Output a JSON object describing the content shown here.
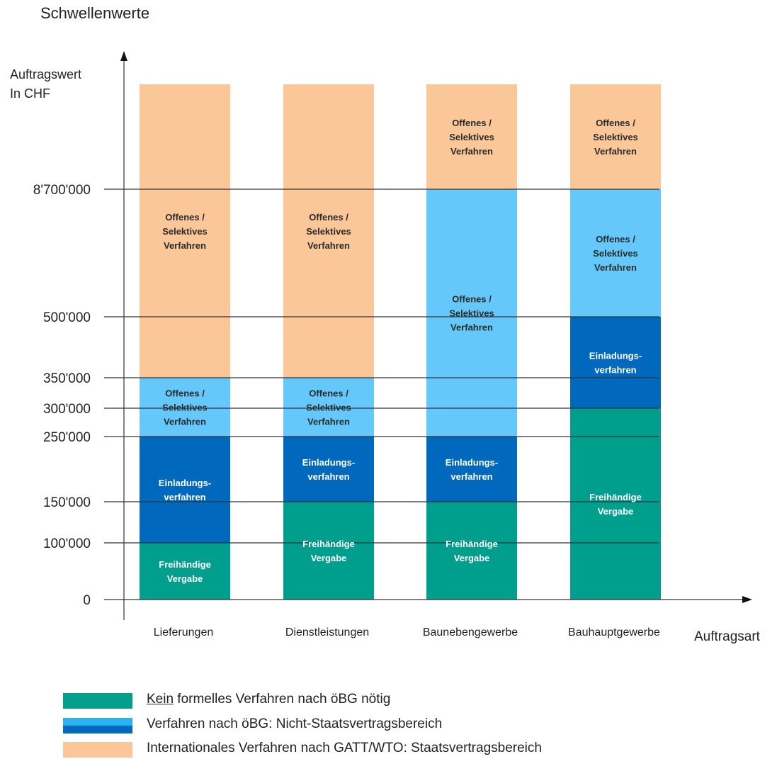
{
  "title": "Schwellenwerte",
  "y_axis_label": [
    "Auftragswert",
    "In CHF"
  ],
  "x_axis_label": "Auftragsart",
  "colors": {
    "green": "#009e8c",
    "dark_blue": "#0069bd",
    "light_blue": "#64c8fb",
    "peach": "#fbc799"
  },
  "chart_data": {
    "type": "bar",
    "stacked": true,
    "categories": [
      "Lieferungen",
      "Dienstleistungen",
      "Baunebengewerbe",
      "Bauhauptgewerbe"
    ],
    "y_ticks": [
      {
        "value": 0,
        "label": "0"
      },
      {
        "value": 100000,
        "label": "100'000"
      },
      {
        "value": 150000,
        "label": "150'000"
      },
      {
        "value": 250000,
        "label": "250'000"
      },
      {
        "value": 300000,
        "label": "300'000"
      },
      {
        "value": 350000,
        "label": "350'000"
      },
      {
        "value": 500000,
        "label": "500'000"
      },
      {
        "value": 8700000,
        "label": "8'700'000"
      }
    ],
    "top_value": "open-ended above 8'700'000",
    "bars": [
      {
        "category": "Lieferungen",
        "segments": [
          {
            "from": 0,
            "to": 100000,
            "color": "green",
            "label": [
              "Freihändige",
              "Vergabe"
            ]
          },
          {
            "from": 100000,
            "to": 250000,
            "color": "dark_blue",
            "label": [
              "Einladungs-",
              "verfahren"
            ]
          },
          {
            "from": 250000,
            "to": 350000,
            "color": "light_blue",
            "label": [
              "Offenes /",
              "Selektives",
              "Verfahren"
            ]
          },
          {
            "from": 350000,
            "to": "top",
            "color": "peach",
            "label": [
              "Offenes /",
              "Selektives",
              "Verfahren"
            ]
          }
        ]
      },
      {
        "category": "Dienstleistungen",
        "segments": [
          {
            "from": 0,
            "to": 150000,
            "color": "green",
            "label": [
              "Freihändige",
              "Vergabe"
            ]
          },
          {
            "from": 150000,
            "to": 250000,
            "color": "dark_blue",
            "label": [
              "Einladungs-",
              "verfahren"
            ]
          },
          {
            "from": 250000,
            "to": 350000,
            "color": "light_blue",
            "label": [
              "Offenes /",
              "Selektives",
              "Verfahren"
            ]
          },
          {
            "from": 350000,
            "to": "top",
            "color": "peach",
            "label": [
              "Offenes /",
              "Selektives",
              "Verfahren"
            ]
          }
        ]
      },
      {
        "category": "Baunebengewerbe",
        "segments": [
          {
            "from": 0,
            "to": 150000,
            "color": "green",
            "label": [
              "Freihändige",
              "Vergabe"
            ]
          },
          {
            "from": 150000,
            "to": 250000,
            "color": "dark_blue",
            "label": [
              "Einladungs-",
              "verfahren"
            ]
          },
          {
            "from": 250000,
            "to": 8700000,
            "color": "light_blue",
            "label": [
              "Offenes /",
              "Selektives",
              "Verfahren"
            ]
          },
          {
            "from": 8700000,
            "to": "top",
            "color": "peach",
            "label": [
              "Offenes /",
              "Selektives",
              "Verfahren"
            ]
          }
        ]
      },
      {
        "category": "Bauhauptgewerbe",
        "segments": [
          {
            "from": 0,
            "to": 300000,
            "color": "green",
            "label": [
              "Freihändige",
              "Vergabe"
            ]
          },
          {
            "from": 300000,
            "to": 500000,
            "color": "dark_blue",
            "label": [
              "Einladungs-",
              "verfahren"
            ]
          },
          {
            "from": 500000,
            "to": 8700000,
            "color": "light_blue",
            "label": [
              "Offenes /",
              "Selektives",
              "Verfahren"
            ]
          },
          {
            "from": 8700000,
            "to": "top",
            "color": "peach",
            "label": [
              "Offenes /",
              "Selektives",
              "Verfahren"
            ]
          }
        ]
      }
    ]
  },
  "legend": [
    {
      "swatch": "green",
      "underlined": "Kein",
      "text": " formelles Verfahren nach öBG nötig"
    },
    {
      "swatch": "blue_gradient",
      "underlined": "",
      "text": "Verfahren nach öBG: Nicht-Staatsvertragsbereich"
    },
    {
      "swatch": "peach",
      "underlined": "",
      "text": "Internationales Verfahren nach GATT/WTO: Staatsvertragsbereich"
    }
  ]
}
